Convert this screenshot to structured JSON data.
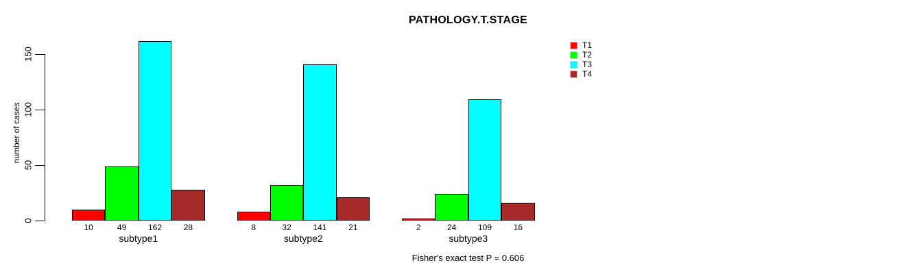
{
  "title": "PATHOLOGY.T.STAGE",
  "ylabel": "number of cases",
  "caption": "Fisher's exact test P = 0.606",
  "colors": {
    "T1": "#FF0000",
    "T2": "#00FF00",
    "T3": "#00FFFF",
    "T4": "#A52A2A",
    "axis": "#000000",
    "background": "#FFFFFF"
  },
  "legend": {
    "items": [
      {
        "label": "T1",
        "color": "#FF0000"
      },
      {
        "label": "T2",
        "color": "#00FF00"
      },
      {
        "label": "T3",
        "color": "#00FFFF"
      },
      {
        "label": "T4",
        "color": "#A52A2A"
      }
    ]
  },
  "chart_data": {
    "type": "bar",
    "title": "PATHOLOGY.T.STAGE",
    "xlabel": "",
    "ylabel": "number of cases",
    "categories": [
      "subtype1",
      "subtype2",
      "subtype3"
    ],
    "series": [
      {
        "name": "T1",
        "color": "#FF0000",
        "values": [
          10,
          8,
          2
        ]
      },
      {
        "name": "T2",
        "color": "#00FF00",
        "values": [
          49,
          32,
          24
        ]
      },
      {
        "name": "T3",
        "color": "#00FFFF",
        "values": [
          162,
          141,
          109
        ]
      },
      {
        "name": "T4",
        "color": "#A52A2A",
        "values": [
          28,
          21,
          16
        ]
      }
    ],
    "bar_value_labels": {
      "subtype1": [
        10,
        49,
        162,
        28
      ],
      "subtype2": [
        8,
        32,
        141,
        21
      ],
      "subtype3": [
        2,
        24,
        109,
        16
      ]
    },
    "ylim": [
      0,
      150
    ],
    "yticks": [
      0,
      50,
      100,
      150
    ],
    "grid": false,
    "grouped": true,
    "legend_position": "top-right",
    "annotation": "Fisher's exact test P = 0.606"
  }
}
